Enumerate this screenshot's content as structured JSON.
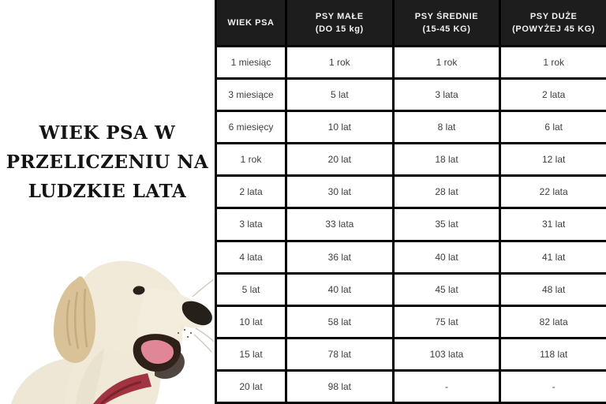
{
  "left_panel": {
    "title_lines": [
      "WIEK PSA W",
      "PRZELICZENIU NA",
      "LUDZKIE LATA"
    ],
    "image_description": "golden retriever puppy photo"
  },
  "chart_data": {
    "type": "table",
    "title": "WIEK PSA W PRZELICZENIU NA LUDZKIE LATA",
    "columns": [
      "WIEK PSA",
      "PSY MAŁE (DO 15 kg)",
      "PSY ŚREDNIE (15-45 KG)",
      "PSY DUŻE (POWYŻEJ 45 KG)"
    ],
    "columns_two_line": [
      {
        "line1": "WIEK PSA",
        "line2": ""
      },
      {
        "line1": "PSY MAŁE",
        "line2": "(DO 15 kg)"
      },
      {
        "line1": "PSY ŚREDNIE",
        "line2": "(15-45 KG)"
      },
      {
        "line1": "PSY DUŻE",
        "line2": "(POWYŻEJ 45 KG)"
      }
    ],
    "rows": [
      [
        "1 miesiąc",
        "1 rok",
        "1 rok",
        "1 rok"
      ],
      [
        "3 miesiące",
        "5 lat",
        "3 lata",
        "2 lata"
      ],
      [
        "6 miesięcy",
        "10 lat",
        "8 lat",
        "6 lat"
      ],
      [
        "1 rok",
        "20 lat",
        "18 lat",
        "12 lat"
      ],
      [
        "2 lata",
        "30 lat",
        "28 lat",
        "22 lata"
      ],
      [
        "3 lata",
        "33 lata",
        "35 lat",
        "31 lat"
      ],
      [
        "4 lata",
        "36 lat",
        "40 lat",
        "41 lat"
      ],
      [
        "5 lat",
        "40 lat",
        "45 lat",
        "48 lat"
      ],
      [
        "10 lat",
        "58 lat",
        "75 lat",
        "82 lata"
      ],
      [
        "15 lat",
        "78 lat",
        "103 lata",
        "118 lat"
      ],
      [
        "20 lat",
        "98 lat",
        "-",
        "-"
      ]
    ],
    "layout_hints": {
      "header_row": true,
      "grid_on": true,
      "first_column_is_row_header": true
    }
  },
  "colors": {
    "header_bg": "#1d1d1d",
    "header_text": "#f2f2f2",
    "cell_bg": "#ffffff",
    "cell_text": "#3e3e3e",
    "border": "#000000",
    "title_text": "#141414",
    "dog_fur": "#f1ead9",
    "dog_ear": "#d9c198",
    "dog_nose": "#26201b",
    "dog_tongue": "#e08697",
    "collar_red": "#a23440"
  }
}
